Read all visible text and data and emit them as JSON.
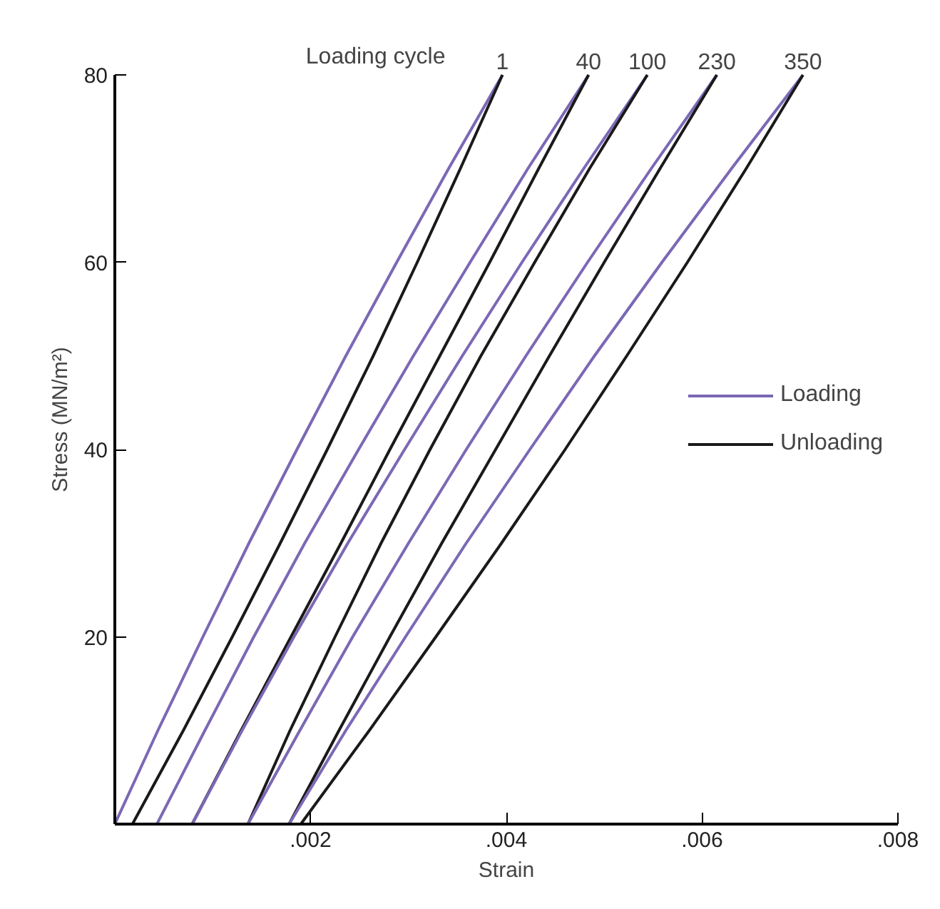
{
  "chart_data": {
    "type": "line",
    "xlabel": "Strain",
    "ylabel": "Stress (MN/m²)",
    "xlim": [
      0,
      0.008
    ],
    "ylim": [
      0,
      80
    ],
    "xticks": [
      {
        "value": 0,
        "label": null
      },
      {
        "value": 0.002,
        "label": ".002"
      },
      {
        "value": 0.004,
        "label": ".004"
      },
      {
        "value": 0.006,
        "label": ".006"
      },
      {
        "value": 0.008,
        "label": ".008"
      }
    ],
    "yticks": [
      {
        "value": 0,
        "label": null
      },
      20,
      40,
      60,
      80
    ],
    "grid": false,
    "legend": "right",
    "marker": "none",
    "line_style": "solid",
    "series": [
      {
        "name": "Loading",
        "color": "#7b68b5",
        "x": [
          0,
          0.00044,
          0.0009,
          0.00137,
          0.00186,
          0.00236,
          0.00288,
          0.00341,
          0.00396
        ],
        "values": [
          0,
          10,
          20,
          30,
          40,
          50,
          60,
          70,
          80
        ]
      },
      {
        "name": "Unloading",
        "color": "#1a1a1a",
        "x": [
          0.00018,
          0.0007,
          0.0012,
          0.00169,
          0.00217,
          0.00264,
          0.00309,
          0.00353,
          0.00396
        ],
        "values": [
          0,
          10,
          20,
          30,
          40,
          50,
          60,
          70,
          80
        ]
      },
      {
        "color": "#7b68b5",
        "x": [
          0.00043,
          0.00092,
          0.00142,
          0.00194,
          0.00249,
          0.00305,
          0.00363,
          0.00422,
          0.00484
        ],
        "values": [
          0,
          10,
          20,
          30,
          40,
          50,
          60,
          70,
          80
        ]
      },
      {
        "color": "#1a1a1a",
        "x": [
          0.00079,
          0.00129,
          0.0018,
          0.00231,
          0.00281,
          0.00332,
          0.00383,
          0.00433,
          0.00484
        ],
        "values": [
          0,
          10,
          20,
          30,
          40,
          50,
          60,
          70,
          80
        ]
      },
      {
        "color": "#7b68b5",
        "x": [
          0.00079,
          0.0013,
          0.00183,
          0.00238,
          0.00296,
          0.00355,
          0.00416,
          0.00479,
          0.00544
        ],
        "values": [
          0,
          10,
          20,
          30,
          40,
          50,
          60,
          70,
          80
        ]
      },
      {
        "color": "#1a1a1a",
        "x": [
          0.00136,
          0.00179,
          0.00225,
          0.00272,
          0.00322,
          0.00374,
          0.00429,
          0.00485,
          0.00544
        ],
        "values": [
          0,
          10,
          20,
          30,
          40,
          50,
          60,
          70,
          80
        ]
      },
      {
        "color": "#7b68b5",
        "x": [
          0.00136,
          0.00189,
          0.00243,
          0.003,
          0.00359,
          0.0042,
          0.00483,
          0.00548,
          0.00615
        ],
        "values": [
          0,
          10,
          20,
          30,
          40,
          50,
          60,
          70,
          80
        ]
      },
      {
        "color": "#1a1a1a",
        "x": [
          0.00178,
          0.00229,
          0.00281,
          0.00334,
          0.00389,
          0.00444,
          0.005,
          0.00557,
          0.00615
        ],
        "values": [
          0,
          10,
          20,
          30,
          40,
          50,
          60,
          70,
          80
        ]
      },
      {
        "color": "#7b68b5",
        "x": [
          0.00178,
          0.00236,
          0.00297,
          0.00359,
          0.00424,
          0.0049,
          0.00559,
          0.0063,
          0.00703
        ],
        "values": [
          0,
          10,
          20,
          30,
          40,
          50,
          60,
          70,
          80
        ]
      },
      {
        "color": "#1a1a1a",
        "x": [
          0.0019,
          0.0026,
          0.00328,
          0.00395,
          0.0046,
          0.00523,
          0.00585,
          0.00645,
          0.00703
        ],
        "values": [
          0,
          10,
          20,
          30,
          40,
          50,
          60,
          70,
          80
        ]
      }
    ],
    "annotations": [
      "Loading cycle",
      {
        "text": "1",
        "x": 0.00396,
        "y": 80
      },
      {
        "text": "40",
        "x": 0.00484,
        "y": 80
      },
      {
        "text": "100",
        "x": 0.00544,
        "y": 80
      },
      {
        "text": "230",
        "x": 0.00615,
        "y": 80
      },
      {
        "text": "350",
        "x": 0.00703,
        "y": 80
      }
    ]
  }
}
